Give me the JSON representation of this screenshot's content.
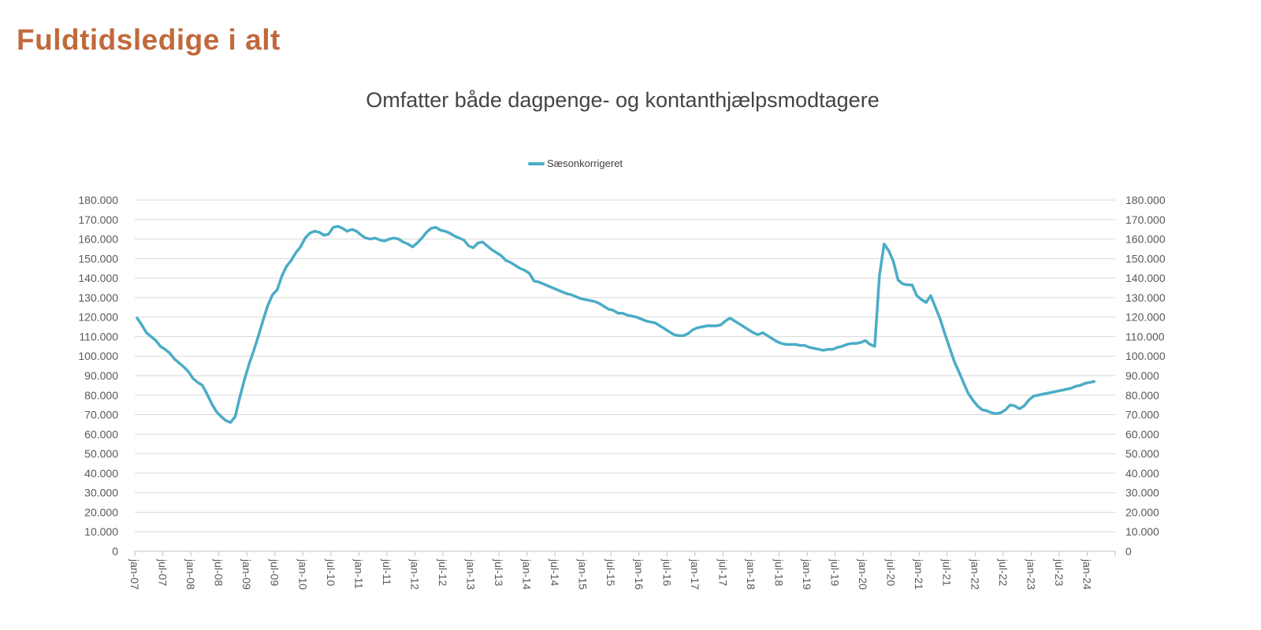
{
  "page": {
    "title": "Fuldtidsledige i alt"
  },
  "chart": {
    "title": "Omfatter både dagpenge- og kontanthjælpsmodtagere",
    "legend": {
      "label": "Sæsonkorrigeret"
    }
  },
  "colors": {
    "line": "#4BACC6",
    "page_title": "#C1693C",
    "chart_title": "#444444",
    "axis_text": "#595959",
    "gridline": "#D9D9D9",
    "axis_line": "#BFBFBF"
  },
  "chart_data": {
    "type": "line",
    "title": "Omfatter både dagpenge- og kontanthjælpsmodtagere",
    "xlabel": "",
    "ylabel": "",
    "ylim": [
      0,
      180000
    ],
    "y_tick_step": 10000,
    "grid": "horizontal",
    "legend_position": "top-center",
    "x_start": "jan-07",
    "x_end": "feb-24",
    "x_frequency": "monthly",
    "x_tick_interval_months": 6,
    "x_tick_labels": [
      "jan-07",
      "jul-07",
      "jan-08",
      "jul-08",
      "jan-09",
      "jul-09",
      "jan-10",
      "jul-10",
      "jan-11",
      "jul-11",
      "jan-12",
      "jul-12",
      "jan-13",
      "jul-13",
      "jan-14",
      "jul-14",
      "jan-15",
      "jul-15",
      "jan-16",
      "jul-16",
      "jan-17",
      "jul-17",
      "jan-18",
      "jul-18",
      "jan-19",
      "jul-19",
      "jan-20",
      "jul-20",
      "jan-21",
      "jul-21",
      "jan-22",
      "jul-22",
      "jan-23",
      "jul-23",
      "jan-24"
    ],
    "y_tick_labels": [
      "0",
      "10.000",
      "20.000",
      "30.000",
      "40.000",
      "50.000",
      "60.000",
      "70.000",
      "80.000",
      "90.000",
      "100.000",
      "110.000",
      "120.000",
      "130.000",
      "140.000",
      "150.000",
      "160.000",
      "170.000",
      "180.000"
    ],
    "series": [
      {
        "name": "Sæsonkorrigeret",
        "values": [
          119500,
          116000,
          112000,
          110000,
          108000,
          105000,
          103500,
          101500,
          98500,
          96500,
          94500,
          92000,
          88500,
          86500,
          85000,
          80500,
          75500,
          71500,
          69000,
          67000,
          66000,
          69000,
          79000,
          88000,
          96000,
          103000,
          110500,
          118500,
          126000,
          131500,
          134000,
          141000,
          146000,
          149000,
          153000,
          156000,
          160500,
          163000,
          164000,
          163500,
          162000,
          162500,
          166000,
          166500,
          165500,
          164000,
          165000,
          164000,
          162000,
          160500,
          160000,
          160500,
          159500,
          159000,
          160000,
          160500,
          160000,
          158500,
          157500,
          156000,
          158000,
          160500,
          163500,
          165500,
          166000,
          164500,
          164000,
          163000,
          161500,
          160500,
          159500,
          156500,
          155500,
          158000,
          158500,
          156500,
          154500,
          153000,
          151500,
          149000,
          148000,
          146500,
          145000,
          144000,
          142500,
          138500,
          138000,
          137000,
          136000,
          135000,
          134000,
          133000,
          132000,
          131500,
          130500,
          129500,
          129000,
          128500,
          128000,
          127000,
          125500,
          124000,
          123500,
          122000,
          122000,
          121000,
          120500,
          120000,
          119000,
          118000,
          117500,
          117000,
          115500,
          114000,
          112500,
          111000,
          110500,
          110500,
          111500,
          113500,
          114500,
          115000,
          115500,
          115500,
          115500,
          116000,
          118000,
          119500,
          118000,
          116500,
          115000,
          113500,
          112000,
          111000,
          112000,
          110500,
          109000,
          107500,
          106500,
          106000,
          106000,
          106000,
          105500,
          105500,
          104500,
          104000,
          103500,
          103000,
          103500,
          103500,
          104500,
          105000,
          106000,
          106500,
          106500,
          107000,
          108000,
          106000,
          105000,
          141000,
          157500,
          154000,
          148500,
          139000,
          137000,
          136500,
          136500,
          131000,
          129000,
          127500,
          131000,
          125000,
          119000,
          111500,
          104500,
          97500,
          92000,
          86500,
          81000,
          77500,
          74500,
          72500,
          72000,
          71000,
          70500,
          71000,
          72500,
          75000,
          74500,
          73000,
          74500,
          77500,
          79500,
          80000,
          80500,
          81000,
          81500,
          82000,
          82500,
          83000,
          83500,
          84500,
          85000,
          86000,
          86500,
          87000
        ]
      }
    ]
  }
}
